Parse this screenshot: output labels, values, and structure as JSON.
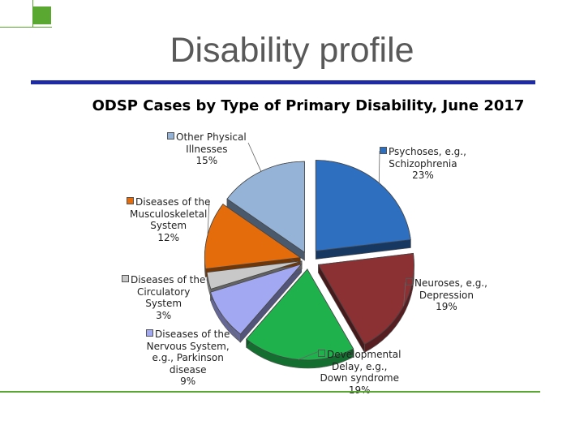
{
  "slide": {
    "title": "Disability profile"
  },
  "chart_data": {
    "type": "pie",
    "title": "ODSP Cases by Type of Primary Disability, June 2017",
    "slices": [
      {
        "lines": [
          "Psychoses, e.g.,",
          "Schizophrenia"
        ],
        "value": 23,
        "pct_label": "23%",
        "color": "#2e6fc0"
      },
      {
        "lines": [
          "Neuroses, e.g.,",
          "Depression"
        ],
        "value": 19,
        "pct_label": "19%",
        "color": "#8b3134"
      },
      {
        "lines": [
          "Developmental",
          "Delay, e.g.,",
          "Down syndrome"
        ],
        "value": 19,
        "pct_label": "19%",
        "color": "#1eb14c"
      },
      {
        "lines": [
          "Diseases of the",
          "Nervous System,",
          "e.g., Parkinson",
          "disease"
        ],
        "value": 9,
        "pct_label": "9%",
        "color": "#a3a8f2"
      },
      {
        "lines": [
          "Diseases of the",
          "Circulatory",
          "System"
        ],
        "value": 3,
        "pct_label": "3%",
        "color": "#c8c8c8"
      },
      {
        "lines": [
          "Diseases of the",
          "Musculoskeletal",
          "System"
        ],
        "value": 12,
        "pct_label": "12%",
        "color": "#e46c0a"
      },
      {
        "lines": [
          "Other Physical",
          "Illnesses"
        ],
        "value": 15,
        "pct_label": "15%",
        "color": "#94b3d7"
      }
    ]
  }
}
